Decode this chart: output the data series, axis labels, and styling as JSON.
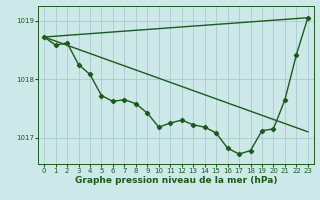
{
  "xlabel": "Graphe pression niveau de la mer (hPa)",
  "bg_color": "#cce8e8",
  "line_color": "#1a5c1a",
  "grid_color": "#aacccc",
  "xlim": [
    -0.5,
    23.5
  ],
  "ylim": [
    1016.55,
    1019.25
  ],
  "yticks": [
    1017,
    1018,
    1019
  ],
  "xticks": [
    0,
    1,
    2,
    3,
    4,
    5,
    6,
    7,
    8,
    9,
    10,
    11,
    12,
    13,
    14,
    15,
    16,
    17,
    18,
    19,
    20,
    21,
    22,
    23
  ],
  "series1_x": [
    0,
    23
  ],
  "series1_y": [
    1018.72,
    1019.05
  ],
  "series2_x": [
    0,
    23
  ],
  "series2_y": [
    1018.72,
    1017.1
  ],
  "series3_x": [
    0,
    1,
    2,
    3,
    4,
    5,
    6,
    7,
    8,
    9,
    10,
    11,
    12,
    13,
    14,
    15,
    16,
    17,
    18,
    19,
    20,
    21,
    22,
    23
  ],
  "series3_y": [
    1018.72,
    1018.58,
    1018.62,
    1018.25,
    1018.08,
    1017.72,
    1017.62,
    1017.65,
    1017.58,
    1017.42,
    1017.18,
    1017.25,
    1017.3,
    1017.22,
    1017.18,
    1017.08,
    1016.82,
    1016.72,
    1016.78,
    1017.12,
    1017.15,
    1017.65,
    1018.42,
    1019.05
  ],
  "marker": "D",
  "markersize": 2.2,
  "linewidth": 1.0,
  "label_fontsize": 6.5,
  "tick_fontsize": 5.0
}
